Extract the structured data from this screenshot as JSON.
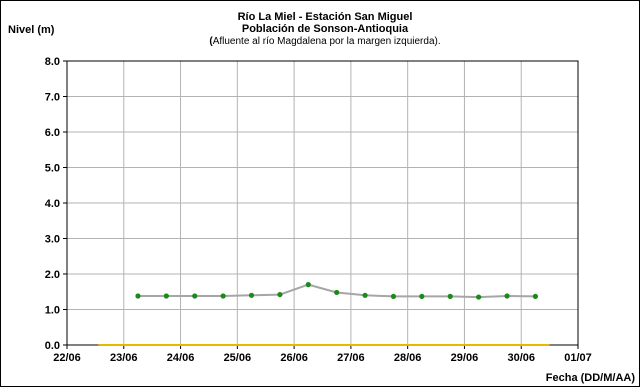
{
  "chart_data": {
    "type": "line",
    "title": "Río La Miel  - Estación San Miguel",
    "subtitle": "Población de Sonson-Antioquia",
    "subtitle2_bold": "(",
    "subtitle2_rest": "Afluente al río Magdalena por la margen izquierda).",
    "ylabel": "Nivel (m)",
    "xlabel": "Fecha (DD/M/AA)",
    "ylim": [
      0,
      8
    ],
    "yticks": [
      "0.0",
      "1.0",
      "2.0",
      "3.0",
      "4.0",
      "5.0",
      "6.0",
      "7.0",
      "8.0"
    ],
    "xlim": [
      0,
      9
    ],
    "xticks": [
      "22/06",
      "23/06",
      "24/06",
      "25/06",
      "26/06",
      "27/06",
      "28/06",
      "29/06",
      "30/06",
      "01/07"
    ],
    "grid": true,
    "series": [
      {
        "x": [
          1.25,
          1.75,
          2.25,
          2.75,
          3.25,
          3.75,
          4.25,
          4.75,
          5.25,
          5.75,
          6.25,
          6.75,
          7.25,
          7.75,
          8.25
        ],
        "y": [
          1.38,
          1.38,
          1.38,
          1.38,
          1.4,
          1.42,
          1.7,
          1.48,
          1.4,
          1.37,
          1.37,
          1.37,
          1.35,
          1.38,
          1.37
        ],
        "line_color": "#a6a6a6",
        "marker_color": "#1a8a1a"
      }
    ],
    "threshold": {
      "y": 0.0,
      "x_from": 0.55,
      "x_to": 8.5,
      "color": "#e6b800"
    }
  }
}
